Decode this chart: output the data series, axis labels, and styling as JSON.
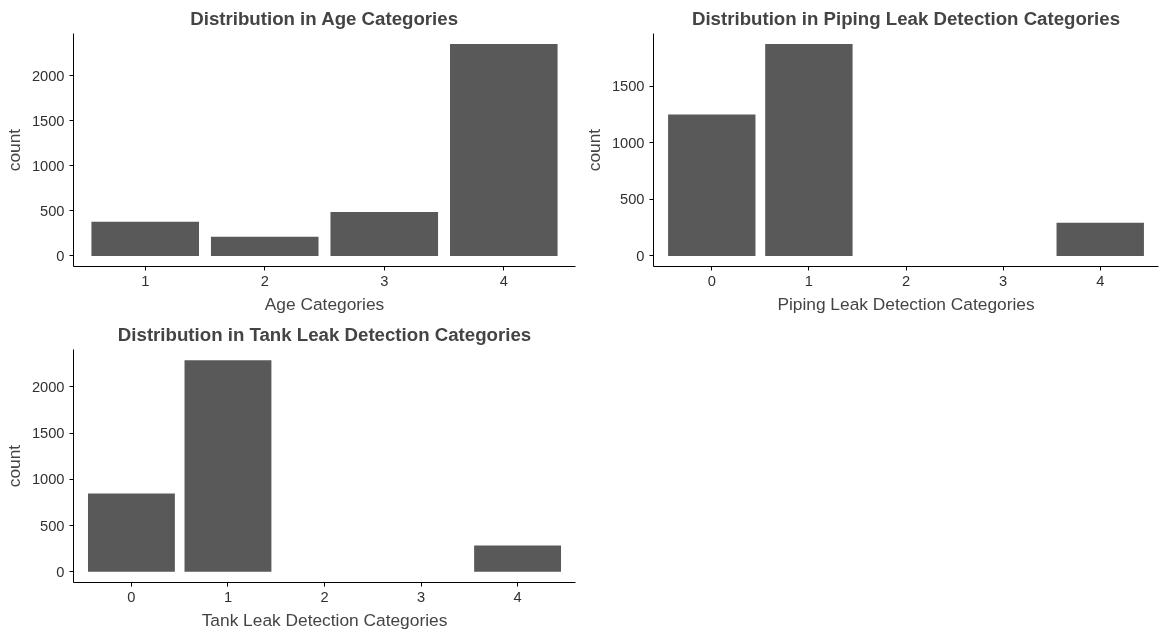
{
  "chart_data": [
    {
      "type": "bar",
      "title": "Distribution in Age Categories",
      "xlabel": "Age Categories",
      "ylabel": "count",
      "categories": [
        "1",
        "2",
        "3",
        "4"
      ],
      "values": [
        379,
        212,
        488,
        2352
      ],
      "color": "#595959",
      "ylim": [
        -118,
        2470
      ],
      "yticks": [
        0,
        500,
        1000,
        1500,
        2000
      ]
    },
    {
      "type": "bar",
      "title": "Distribution in Piping Leak Detection Categories",
      "xlabel": "Piping Leak Detection Categories",
      "ylabel": "count",
      "categories": [
        "0",
        "1",
        "2",
        "3",
        "4"
      ],
      "values": [
        1252,
        1874,
        null,
        null,
        294
      ],
      "color": "#595959",
      "ylim": [
        -94,
        1968
      ],
      "yticks": [
        0,
        500,
        1000,
        1500
      ]
    },
    {
      "type": "bar",
      "title": "Distribution in Tank Leak Detection Categories",
      "xlabel": "Tank Leak Detection Categories",
      "ylabel": "count",
      "categories": [
        "0",
        "1",
        "2",
        "3",
        "4"
      ],
      "values": [
        848,
        2290,
        null,
        null,
        286
      ],
      "color": "#595959",
      "ylim": [
        -115,
        2405
      ],
      "yticks": [
        0,
        500,
        1000,
        1500,
        2000
      ]
    }
  ]
}
